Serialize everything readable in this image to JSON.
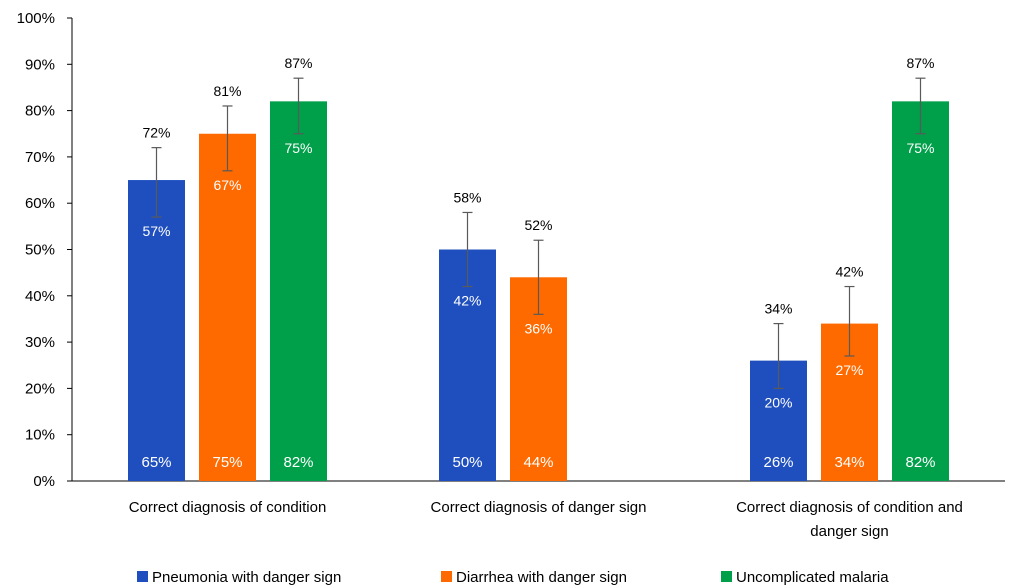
{
  "chart_data": {
    "type": "bar",
    "ylim": [
      0,
      100
    ],
    "y_ticks": [
      "0%",
      "10%",
      "20%",
      "30%",
      "40%",
      "50%",
      "60%",
      "70%",
      "80%",
      "90%",
      "100%"
    ],
    "categories": [
      [
        "Correct diagnosis of condition"
      ],
      [
        "Correct diagnosis of danger sign"
      ],
      [
        "Correct diagnosis of condition and",
        "danger sign"
      ]
    ],
    "grid": false,
    "legend_position": "bottom",
    "value_labels_format": "percent",
    "series": [
      {
        "name": "Pneumonia with danger sign",
        "color": "#1f4fbf",
        "values": [
          65,
          50,
          26
        ],
        "ci_lower": [
          57,
          42,
          20
        ],
        "ci_upper": [
          72,
          58,
          34
        ]
      },
      {
        "name": "Diarrhea with danger sign",
        "color": "#ff6a00",
        "values": [
          75,
          44,
          34
        ],
        "ci_lower": [
          67,
          36,
          27
        ],
        "ci_upper": [
          81,
          52,
          42
        ]
      },
      {
        "name": "Uncomplicated malaria",
        "color": "#00a04a",
        "values": [
          82,
          null,
          82
        ],
        "ci_lower": [
          75,
          null,
          75
        ],
        "ci_upper": [
          87,
          null,
          87
        ]
      }
    ]
  }
}
